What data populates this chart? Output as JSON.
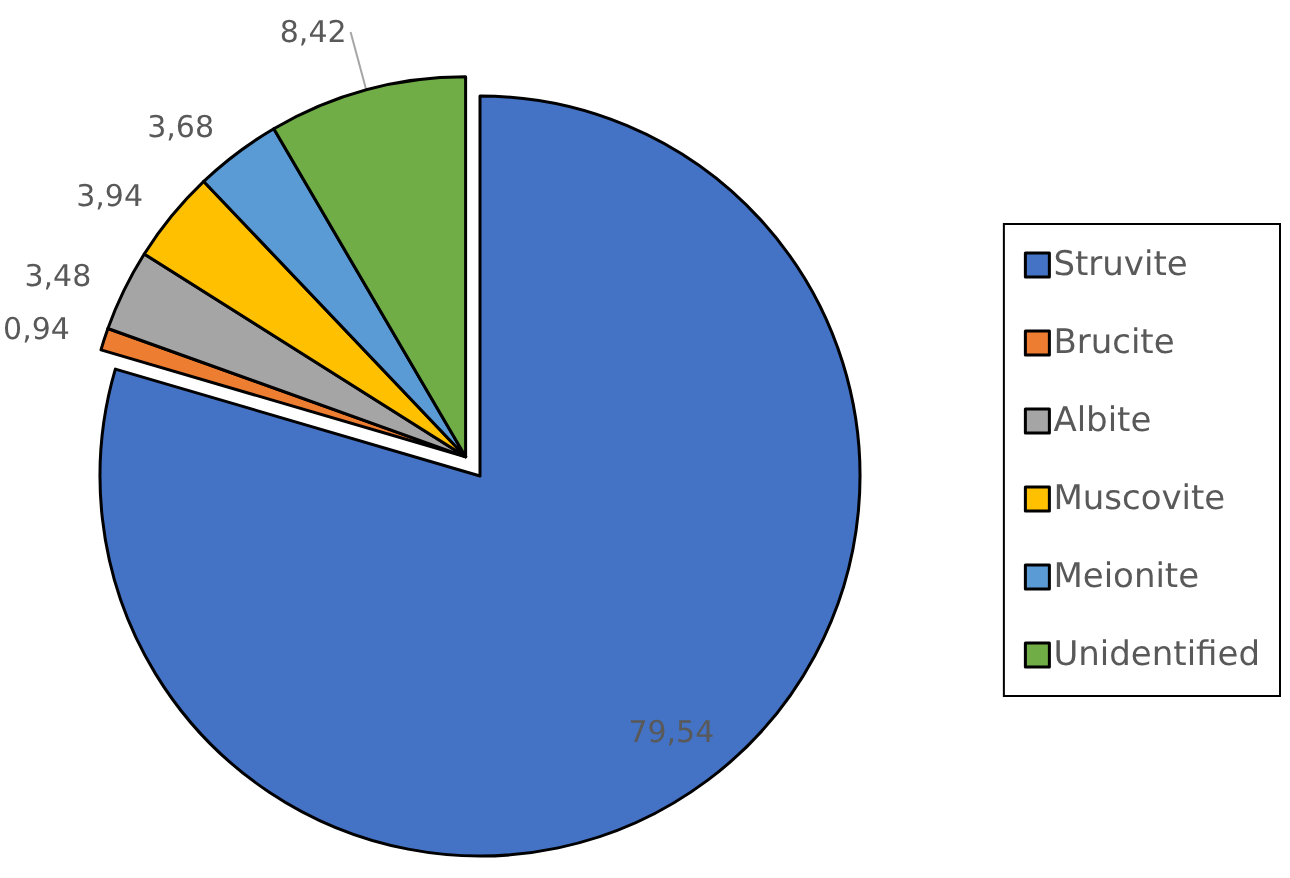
{
  "chart_data": {
    "type": "pie",
    "categories": [
      "Struvite",
      "Brucite",
      "Albite",
      "Muscovite",
      "Meionite",
      "Unidentified"
    ],
    "values": [
      79.54,
      0.94,
      3.48,
      3.94,
      3.68,
      8.42
    ],
    "value_labels": [
      "79,54",
      "0,94",
      "3,48",
      "3,94",
      "3,68",
      "8,42"
    ],
    "colors": [
      "#4472c4",
      "#ed7d31",
      "#a5a5a5",
      "#ffc000",
      "#5b9bd5",
      "#70ad47"
    ],
    "legend": "right"
  }
}
